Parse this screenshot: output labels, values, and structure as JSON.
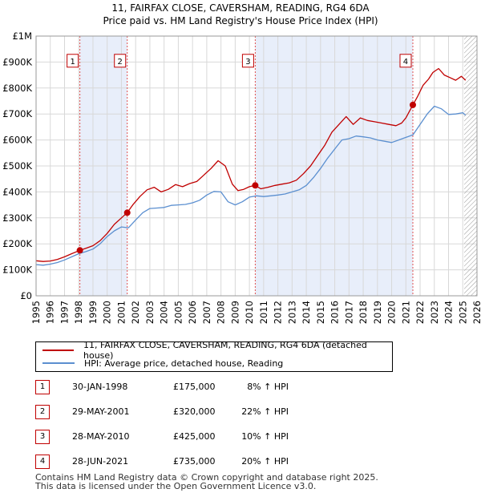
{
  "header": {
    "line1": "11, FAIRFAX CLOSE, CAVERSHAM, READING, RG4 6DA",
    "line2": "Price paid vs. HM Land Registry's House Price Index (HPI)"
  },
  "chart_data": {
    "type": "line",
    "title": "Price paid vs. HM Land Registry's House Price Index (HPI)",
    "xlabel": "",
    "ylabel": "",
    "xlim": [
      1995,
      2026
    ],
    "ylim": [
      0,
      1000000
    ],
    "y_ticks": [
      0,
      100000,
      200000,
      300000,
      400000,
      500000,
      600000,
      700000,
      800000,
      900000,
      1000000
    ],
    "y_tick_labels": [
      "£0",
      "£100K",
      "£200K",
      "£300K",
      "£400K",
      "£500K",
      "£600K",
      "£700K",
      "£800K",
      "£900K",
      "£1M"
    ],
    "x_ticks": [
      "1995",
      "1996",
      "1997",
      "1998",
      "1999",
      "2000",
      "2001",
      "2002",
      "2003",
      "2004",
      "2005",
      "2006",
      "2007",
      "2008",
      "2009",
      "2010",
      "2011",
      "2012",
      "2013",
      "2014",
      "2015",
      "2016",
      "2017",
      "2018",
      "2019",
      "2020",
      "2021",
      "2022",
      "2023",
      "2024",
      "2025",
      "2026"
    ],
    "grid": true,
    "shaded_ranges": [
      [
        1998.08,
        2001.41
      ],
      [
        2010.41,
        2021.49
      ]
    ],
    "forecast_start": 2025.1,
    "series": [
      {
        "name": "11, FAIRFAX CLOSE, CAVERSHAM, READING, RG4 6DA (detached house)",
        "color": "#c00000",
        "x": [
          1995.0,
          1995.5,
          1996.0,
          1996.5,
          1997.0,
          1997.5,
          1998.08,
          1998.5,
          1999.0,
          1999.5,
          2000.0,
          2000.5,
          2001.0,
          2001.41,
          2001.8,
          2002.3,
          2002.8,
          2003.3,
          2003.8,
          2004.3,
          2004.8,
          2005.3,
          2005.8,
          2006.3,
          2006.8,
          2007.3,
          2007.8,
          2008.3,
          2008.8,
          2009.2,
          2009.6,
          2010.0,
          2010.41,
          2010.8,
          2011.3,
          2011.8,
          2012.3,
          2012.8,
          2013.3,
          2013.8,
          2014.3,
          2014.8,
          2015.3,
          2015.8,
          2016.3,
          2016.8,
          2017.3,
          2017.8,
          2018.3,
          2018.8,
          2019.3,
          2019.8,
          2020.3,
          2020.7,
          2021.0,
          2021.49,
          2021.8,
          2022.2,
          2022.6,
          2022.9,
          2023.3,
          2023.7,
          2024.1,
          2024.5,
          2024.9,
          2025.2
        ],
        "values": [
          135000,
          132000,
          134000,
          140000,
          150000,
          162000,
          175000,
          183000,
          193000,
          212000,
          240000,
          275000,
          300000,
          320000,
          350000,
          382000,
          408000,
          418000,
          400000,
          410000,
          428000,
          420000,
          432000,
          440000,
          465000,
          490000,
          520000,
          500000,
          430000,
          405000,
          410000,
          420000,
          425000,
          412000,
          418000,
          425000,
          430000,
          435000,
          445000,
          470000,
          500000,
          540000,
          580000,
          630000,
          660000,
          690000,
          660000,
          685000,
          675000,
          670000,
          665000,
          660000,
          655000,
          665000,
          685000,
          735000,
          765000,
          810000,
          835000,
          860000,
          875000,
          850000,
          840000,
          830000,
          845000,
          830000
        ]
      },
      {
        "name": "HPI: Average price, detached house, Reading",
        "color": "#5b8fd0",
        "x": [
          1995.0,
          1995.5,
          1996.0,
          1996.5,
          1997.0,
          1997.5,
          1998.0,
          1998.5,
          1999.0,
          1999.5,
          2000.0,
          2000.5,
          2001.0,
          2001.5,
          2002.0,
          2002.5,
          2003.0,
          2003.5,
          2004.0,
          2004.5,
          2005.0,
          2005.5,
          2006.0,
          2006.5,
          2007.0,
          2007.5,
          2008.0,
          2008.5,
          2009.0,
          2009.5,
          2010.0,
          2010.5,
          2011.0,
          2011.5,
          2012.0,
          2012.5,
          2013.0,
          2013.5,
          2014.0,
          2014.5,
          2015.0,
          2015.5,
          2016.0,
          2016.5,
          2017.0,
          2017.5,
          2018.0,
          2018.5,
          2019.0,
          2019.5,
          2020.0,
          2020.5,
          2021.0,
          2021.5,
          2022.0,
          2022.5,
          2023.0,
          2023.5,
          2024.0,
          2024.5,
          2025.0,
          2025.2
        ],
        "values": [
          120000,
          118000,
          122000,
          128000,
          138000,
          150000,
          162000,
          170000,
          180000,
          200000,
          228000,
          250000,
          265000,
          262000,
          292000,
          320000,
          336000,
          338000,
          340000,
          348000,
          350000,
          352000,
          358000,
          368000,
          388000,
          402000,
          400000,
          362000,
          350000,
          362000,
          380000,
          385000,
          382000,
          385000,
          388000,
          392000,
          400000,
          408000,
          425000,
          455000,
          490000,
          530000,
          565000,
          600000,
          605000,
          615000,
          612000,
          608000,
          600000,
          595000,
          590000,
          600000,
          610000,
          620000,
          660000,
          700000,
          730000,
          720000,
          698000,
          700000,
          705000,
          695000
        ]
      }
    ],
    "sales": [
      {
        "label": "1",
        "x": 1998.08,
        "value": 175000
      },
      {
        "label": "2",
        "x": 2001.41,
        "value": 320000
      },
      {
        "label": "3",
        "x": 2010.41,
        "value": 425000
      },
      {
        "label": "4",
        "x": 2021.49,
        "value": 735000
      }
    ]
  },
  "legend": {
    "property_label": "11, FAIRFAX CLOSE, CAVERSHAM, READING, RG4 6DA (detached house)",
    "hpi_label": "HPI: Average price, detached house, Reading"
  },
  "sales_table": [
    {
      "num": "1",
      "date": "30-JAN-1998",
      "price": "£175,000",
      "hpi": "8% ↑ HPI"
    },
    {
      "num": "2",
      "date": "29-MAY-2001",
      "price": "£320,000",
      "hpi": "22% ↑ HPI"
    },
    {
      "num": "3",
      "date": "28-MAY-2010",
      "price": "£425,000",
      "hpi": "10% ↑ HPI"
    },
    {
      "num": "4",
      "date": "28-JUN-2021",
      "price": "£735,000",
      "hpi": "20% ↑ HPI"
    }
  ],
  "footer": {
    "line1": "Contains HM Land Registry data © Crown copyright and database right 2025.",
    "line2": "This data is licensed under the Open Government Licence v3.0."
  },
  "colors": {
    "property": "#c00000",
    "hpi": "#5b8fd0",
    "shade": "#e8eefa",
    "grid": "#d8d8d8"
  }
}
